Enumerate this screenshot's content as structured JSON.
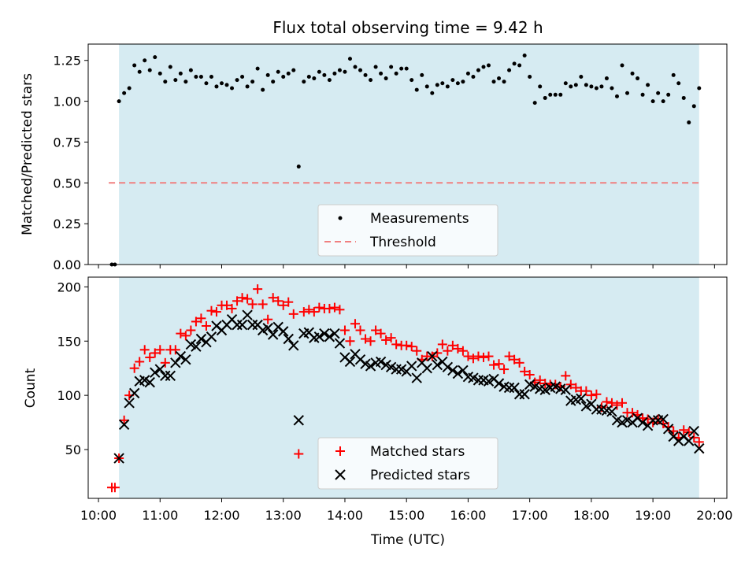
{
  "chart_data": [
    {
      "type": "scatter",
      "title": "Flux total observing time = 9.42 h",
      "ylabel": "Matched/Predicted stars",
      "xlim": [
        "09:50",
        "20:12"
      ],
      "ylim": [
        0,
        1.35
      ],
      "yticks": [
        "0.00",
        "0.25",
        "0.50",
        "0.75",
        "1.00",
        "1.25"
      ],
      "shaded_span": [
        "10:20",
        "19:45"
      ],
      "threshold": 0.5,
      "threshold_span": [
        "10:10",
        "19:47"
      ],
      "legend": [
        "Measurements",
        "Threshold"
      ],
      "legend_loc": "lower center",
      "colors": {
        "shade": "#add8e6",
        "threshold": "#f08080",
        "points": "#000000"
      },
      "series": [
        {
          "name": "Measurements",
          "x": [
            "10:13",
            "10:16",
            "10:20",
            "10:25",
            "10:30",
            "10:35",
            "10:40",
            "10:45",
            "10:50",
            "10:55",
            "11:00",
            "11:05",
            "11:10",
            "11:15",
            "11:20",
            "11:25",
            "11:30",
            "11:35",
            "11:40",
            "11:45",
            "11:50",
            "11:55",
            "12:00",
            "12:05",
            "12:10",
            "12:15",
            "12:20",
            "12:25",
            "12:30",
            "12:35",
            "12:40",
            "12:45",
            "12:50",
            "12:55",
            "13:00",
            "13:05",
            "13:10",
            "13:15",
            "13:20",
            "13:25",
            "13:30",
            "13:35",
            "13:40",
            "13:45",
            "13:50",
            "13:55",
            "14:00",
            "14:05",
            "14:10",
            "14:15",
            "14:20",
            "14:25",
            "14:30",
            "14:35",
            "14:40",
            "14:45",
            "14:50",
            "14:55",
            "15:00",
            "15:05",
            "15:10",
            "15:15",
            "15:20",
            "15:25",
            "15:30",
            "15:35",
            "15:40",
            "15:45",
            "15:50",
            "15:55",
            "16:00",
            "16:05",
            "16:10",
            "16:15",
            "16:20",
            "16:25",
            "16:30",
            "16:35",
            "16:40",
            "16:45",
            "16:50",
            "16:55",
            "17:00",
            "17:05",
            "17:10",
            "17:15",
            "17:20",
            "17:25",
            "17:30",
            "17:35",
            "17:40",
            "17:45",
            "17:50",
            "17:55",
            "18:00",
            "18:05",
            "18:10",
            "18:15",
            "18:20",
            "18:25",
            "18:30",
            "18:35",
            "18:40",
            "18:45",
            "18:50",
            "18:55",
            "19:00",
            "19:05",
            "19:10",
            "19:15",
            "19:20",
            "19:25",
            "19:30",
            "19:35",
            "19:40",
            "19:45"
          ],
          "values": [
            0.0,
            0.0,
            1.0,
            1.05,
            1.08,
            1.22,
            1.18,
            1.25,
            1.19,
            1.27,
            1.17,
            1.12,
            1.21,
            1.13,
            1.17,
            1.12,
            1.19,
            1.15,
            1.15,
            1.11,
            1.15,
            1.09,
            1.11,
            1.1,
            1.08,
            1.13,
            1.15,
            1.09,
            1.12,
            1.2,
            1.07,
            1.16,
            1.12,
            1.18,
            1.15,
            1.17,
            1.19,
            0.6,
            1.12,
            1.15,
            1.14,
            1.18,
            1.16,
            1.13,
            1.17,
            1.19,
            1.18,
            1.26,
            1.21,
            1.19,
            1.16,
            1.13,
            1.21,
            1.17,
            1.14,
            1.21,
            1.17,
            1.2,
            1.2,
            1.13,
            1.07,
            1.16,
            1.09,
            1.05,
            1.1,
            1.11,
            1.09,
            1.13,
            1.11,
            1.12,
            1.17,
            1.15,
            1.19,
            1.21,
            1.22,
            1.12,
            1.14,
            1.12,
            1.19,
            1.23,
            1.22,
            1.28,
            1.15,
            0.99,
            1.09,
            1.02,
            1.04,
            1.04,
            1.04,
            1.11,
            1.09,
            1.1,
            1.15,
            1.1,
            1.09,
            1.08,
            1.09,
            1.14,
            1.08,
            1.03,
            1.22,
            1.05,
            1.17,
            1.14,
            1.04,
            1.1,
            1.0,
            1.05,
            1.0,
            1.04,
            1.16,
            1.11,
            1.02,
            0.87,
            0.97,
            1.08
          ]
        }
      ]
    },
    {
      "type": "scatter",
      "xlabel": "Time (UTC)",
      "ylabel": "Count",
      "xlim": [
        "09:50",
        "20:12"
      ],
      "ylim": [
        5,
        209
      ],
      "yticks": [
        "50",
        "100",
        "150",
        "200"
      ],
      "xticks": [
        "10:00",
        "11:00",
        "12:00",
        "13:00",
        "14:00",
        "15:00",
        "16:00",
        "17:00",
        "18:00",
        "19:00",
        "20:00"
      ],
      "shaded_span": [
        "10:20",
        "19:45"
      ],
      "legend": [
        "Matched stars",
        "Predicted stars"
      ],
      "legend_loc": "lower center",
      "colors": {
        "shade": "#add8e6",
        "matched": "#ff0000",
        "predicted": "#000000"
      },
      "x": [
        "10:13",
        "10:16",
        "10:20",
        "10:25",
        "10:30",
        "10:35",
        "10:40",
        "10:45",
        "10:50",
        "10:55",
        "11:00",
        "11:05",
        "11:10",
        "11:15",
        "11:20",
        "11:25",
        "11:30",
        "11:35",
        "11:40",
        "11:45",
        "11:50",
        "11:55",
        "12:00",
        "12:05",
        "12:10",
        "12:15",
        "12:20",
        "12:25",
        "12:30",
        "12:35",
        "12:40",
        "12:45",
        "12:50",
        "12:55",
        "13:00",
        "13:05",
        "13:10",
        "13:15",
        "13:20",
        "13:25",
        "13:30",
        "13:35",
        "13:40",
        "13:45",
        "13:50",
        "13:55",
        "14:00",
        "14:05",
        "14:10",
        "14:15",
        "14:20",
        "14:25",
        "14:30",
        "14:35",
        "14:40",
        "14:45",
        "14:50",
        "14:55",
        "15:00",
        "15:05",
        "15:10",
        "15:15",
        "15:20",
        "15:25",
        "15:30",
        "15:35",
        "15:40",
        "15:45",
        "15:50",
        "15:55",
        "16:00",
        "16:05",
        "16:10",
        "16:15",
        "16:20",
        "16:25",
        "16:30",
        "16:35",
        "16:40",
        "16:45",
        "16:50",
        "16:55",
        "17:00",
        "17:05",
        "17:10",
        "17:15",
        "17:20",
        "17:25",
        "17:30",
        "17:35",
        "17:40",
        "17:45",
        "17:50",
        "17:55",
        "18:00",
        "18:05",
        "18:10",
        "18:15",
        "18:20",
        "18:25",
        "18:30",
        "18:35",
        "18:40",
        "18:45",
        "18:50",
        "18:55",
        "19:00",
        "19:05",
        "19:10",
        "19:15",
        "19:20",
        "19:25",
        "19:30",
        "19:35",
        "19:40",
        "19:45"
      ],
      "series": [
        {
          "name": "Matched stars",
          "values": [
            15,
            15,
            42,
            77,
            100,
            125,
            131,
            142,
            135,
            139,
            142,
            130,
            142,
            142,
            157,
            155,
            160,
            168,
            171,
            164,
            178,
            177,
            183,
            183,
            180,
            187,
            190,
            189,
            184,
            198,
            184,
            170,
            190,
            187,
            183,
            186,
            175,
            46,
            177,
            179,
            177,
            181,
            180,
            180,
            181,
            179,
            160,
            150,
            166,
            160,
            152,
            150,
            160,
            157,
            151,
            153,
            147,
            146,
            146,
            145,
            141,
            133,
            136,
            136,
            139,
            147,
            141,
            146,
            143,
            141,
            136,
            134,
            136,
            135,
            136,
            128,
            129,
            124,
            136,
            133,
            130,
            122,
            119,
            112,
            114,
            111,
            110,
            110,
            108,
            118,
            110,
            107,
            104,
            104,
            100,
            101,
            89,
            94,
            93,
            91,
            93,
            84,
            84,
            82,
            79,
            78,
            75,
            78,
            74,
            71,
            67,
            61,
            68,
            66,
            61,
            57
          ]
        },
        {
          "name": "Predicted stars",
          "values": [
            15,
            15,
            42,
            73,
            93,
            102,
            113,
            114,
            112,
            121,
            124,
            118,
            118,
            130,
            136,
            133,
            147,
            145,
            152,
            149,
            154,
            164,
            160,
            165,
            170,
            165,
            165,
            174,
            165,
            165,
            160,
            162,
            156,
            163,
            159,
            152,
            146,
            77,
            157,
            158,
            153,
            154,
            157,
            154,
            157,
            148,
            135,
            131,
            138,
            133,
            129,
            127,
            130,
            131,
            128,
            126,
            124,
            124,
            122,
            127,
            116,
            130,
            125,
            136,
            128,
            131,
            126,
            123,
            120,
            123,
            117,
            116,
            114,
            114,
            113,
            115,
            111,
            108,
            107,
            107,
            101,
            101,
            110,
            108,
            106,
            105,
            107,
            108,
            106,
            105,
            95,
            96,
            97,
            90,
            92,
            87,
            87,
            86,
            85,
            77,
            75,
            77,
            75,
            79,
            75,
            72,
            77,
            77,
            78,
            69,
            62,
            58,
            62,
            58,
            67,
            51
          ]
        }
      ]
    }
  ]
}
